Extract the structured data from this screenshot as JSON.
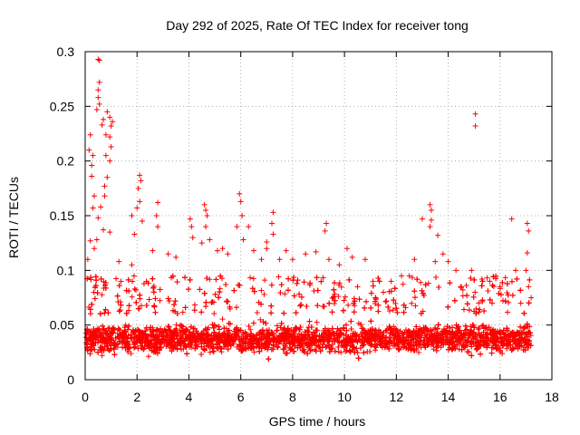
{
  "chart_data": {
    "type": "scatter",
    "title": "Day 292 of 2025, Rate Of TEC Index for receiver tong",
    "xlabel": "GPS time / hours",
    "ylabel": "ROTI / TECUs",
    "xlim": [
      0,
      18
    ],
    "ylim": [
      0,
      0.3
    ],
    "xticks": [
      0,
      2,
      4,
      6,
      8,
      10,
      12,
      14,
      16,
      18
    ],
    "yticks": [
      0,
      0.05,
      0.1,
      0.15,
      0.2,
      0.25,
      0.3
    ],
    "xtick_labels": [
      "0",
      "2",
      "4",
      "6",
      "8",
      "10",
      "12",
      "14",
      "16",
      "18"
    ],
    "ytick_labels": [
      "0",
      "0.05",
      "0.1",
      "0.15",
      "0.2",
      "0.25",
      "0.3"
    ],
    "grid": true,
    "marker": "+",
    "series": [
      {
        "name": "ROTI",
        "color": "#ff0000",
        "data_extent_hours": [
          0,
          17.2
        ],
        "typical_band": [
          0.015,
          0.06
        ],
        "points": [
          [
            0.5,
            0.293
          ],
          [
            0.55,
            0.292
          ],
          [
            0.55,
            0.272
          ],
          [
            0.5,
            0.265
          ],
          [
            0.5,
            0.258
          ],
          [
            0.55,
            0.252
          ],
          [
            0.45,
            0.247
          ],
          [
            0.85,
            0.245
          ],
          [
            0.95,
            0.24
          ],
          [
            1.05,
            0.236
          ],
          [
            1.0,
            0.232
          ],
          [
            0.7,
            0.238
          ],
          [
            0.65,
            0.233
          ],
          [
            0.2,
            0.224
          ],
          [
            0.8,
            0.224
          ],
          [
            0.95,
            0.222
          ],
          [
            0.15,
            0.21
          ],
          [
            0.3,
            0.205
          ],
          [
            1.0,
            0.213
          ],
          [
            0.25,
            0.196
          ],
          [
            0.8,
            0.205
          ],
          [
            0.95,
            0.2
          ],
          [
            0.25,
            0.186
          ],
          [
            0.85,
            0.185
          ],
          [
            0.75,
            0.177
          ],
          [
            0.35,
            0.168
          ],
          [
            0.3,
            0.157
          ],
          [
            0.75,
            0.168
          ],
          [
            0.6,
            0.158
          ],
          [
            0.5,
            0.148
          ],
          [
            0.7,
            0.137
          ],
          [
            0.45,
            0.128
          ],
          [
            0.2,
            0.127
          ],
          [
            0.95,
            0.135
          ],
          [
            0.35,
            0.12
          ],
          [
            0.1,
            0.11
          ],
          [
            1.3,
            0.108
          ],
          [
            1.8,
            0.105
          ],
          [
            2.1,
            0.187
          ],
          [
            2.15,
            0.182
          ],
          [
            2.05,
            0.175
          ],
          [
            2.1,
            0.163
          ],
          [
            2.0,
            0.157
          ],
          [
            1.8,
            0.15
          ],
          [
            1.9,
            0.133
          ],
          [
            2.2,
            0.145
          ],
          [
            2.8,
            0.162
          ],
          [
            2.75,
            0.15
          ],
          [
            2.8,
            0.14
          ],
          [
            2.6,
            0.118
          ],
          [
            3.2,
            0.115
          ],
          [
            3.5,
            0.112
          ],
          [
            4.05,
            0.147
          ],
          [
            4.1,
            0.14
          ],
          [
            4.15,
            0.13
          ],
          [
            4.5,
            0.125
          ],
          [
            4.6,
            0.16
          ],
          [
            4.65,
            0.155
          ],
          [
            4.7,
            0.15
          ],
          [
            4.65,
            0.14
          ],
          [
            4.8,
            0.128
          ],
          [
            5.1,
            0.118
          ],
          [
            5.3,
            0.12
          ],
          [
            5.5,
            0.115
          ],
          [
            5.95,
            0.17
          ],
          [
            6.0,
            0.163
          ],
          [
            6.05,
            0.15
          ],
          [
            5.85,
            0.14
          ],
          [
            6.1,
            0.128
          ],
          [
            6.3,
            0.14
          ],
          [
            6.5,
            0.118
          ],
          [
            6.8,
            0.11
          ],
          [
            7.0,
            0.126
          ],
          [
            7.25,
            0.153
          ],
          [
            7.2,
            0.143
          ],
          [
            7.25,
            0.133
          ],
          [
            7.0,
            0.12
          ],
          [
            7.5,
            0.11
          ],
          [
            7.75,
            0.118
          ],
          [
            8.0,
            0.11
          ],
          [
            8.5,
            0.115
          ],
          [
            8.9,
            0.117
          ],
          [
            9.3,
            0.143
          ],
          [
            9.25,
            0.136
          ],
          [
            9.4,
            0.11
          ],
          [
            9.8,
            0.105
          ],
          [
            10.1,
            0.12
          ],
          [
            10.3,
            0.112
          ],
          [
            10.8,
            0.11
          ],
          [
            11.1,
            0.09
          ],
          [
            11.5,
            0.08
          ],
          [
            11.8,
            0.09
          ],
          [
            12.2,
            0.095
          ],
          [
            12.5,
            0.095
          ],
          [
            12.7,
            0.11
          ],
          [
            13.0,
            0.147
          ],
          [
            13.3,
            0.16
          ],
          [
            13.35,
            0.155
          ],
          [
            13.35,
            0.146
          ],
          [
            13.3,
            0.14
          ],
          [
            13.5,
            0.108
          ],
          [
            13.6,
            0.132
          ],
          [
            13.8,
            0.115
          ],
          [
            14.0,
            0.108
          ],
          [
            14.3,
            0.1
          ],
          [
            14.9,
            0.1
          ],
          [
            15.05,
            0.243
          ],
          [
            15.05,
            0.232
          ],
          [
            15.3,
            0.092
          ],
          [
            15.6,
            0.09
          ],
          [
            16.0,
            0.085
          ],
          [
            16.45,
            0.147
          ],
          [
            16.6,
            0.1
          ],
          [
            17.05,
            0.143
          ],
          [
            17.1,
            0.136
          ],
          [
            17.05,
            0.116
          ],
          [
            17.0,
            0.1
          ],
          [
            17.1,
            0.085
          ],
          [
            17.2,
            0.075
          ],
          [
            16.8,
            0.07
          ]
        ]
      }
    ]
  }
}
